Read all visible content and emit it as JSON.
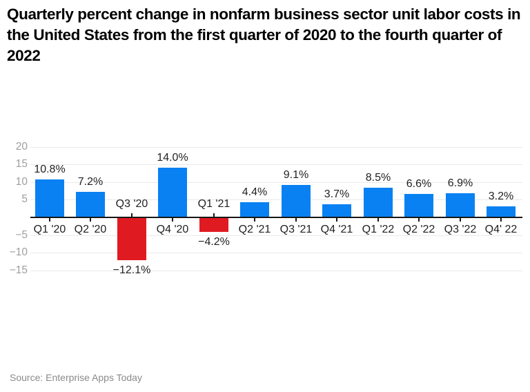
{
  "title": "Quarterly percent change in nonfarm business sector unit labor costs in the United States from the first quarter of 2020 to the fourth quarter of 2022",
  "source": "Source: Enterprise Apps Today",
  "chart_data": {
    "type": "bar",
    "title": "Quarterly percent change in nonfarm business sector unit labor costs in the United States from the first quarter of 2020 to the fourth quarter of 2022",
    "categories": [
      "Q1 '20",
      "Q2 '20",
      "Q3 '20",
      "Q4 '20",
      "Q1 '21",
      "Q2 '21",
      "Q3 '21",
      "Q4 '21",
      "Q1 '22",
      "Q2 '22",
      "Q3 '22",
      "Q4' 22"
    ],
    "values": [
      10.8,
      7.2,
      -12.1,
      14.0,
      -4.2,
      4.4,
      9.1,
      3.7,
      8.5,
      6.6,
      6.9,
      3.2
    ],
    "value_labels": [
      "10.8%",
      "7.2%",
      "−12.1%",
      "14.0%",
      "−4.2%",
      "4.4%",
      "9.1%",
      "3.7%",
      "8.5%",
      "6.6%",
      "6.9%",
      "3.2%"
    ],
    "xlabel": "",
    "ylabel": "",
    "yticks": [
      20,
      15,
      10,
      5,
      -5,
      -10,
      -15
    ],
    "ytick_labels": [
      "20",
      "15",
      "10",
      "5",
      "−5",
      "−10",
      "−15"
    ],
    "ylim": [
      -15,
      20
    ],
    "grid": true,
    "legend": false,
    "colors": {
      "positive": "#0981f2",
      "negative": "#e01a21"
    }
  }
}
